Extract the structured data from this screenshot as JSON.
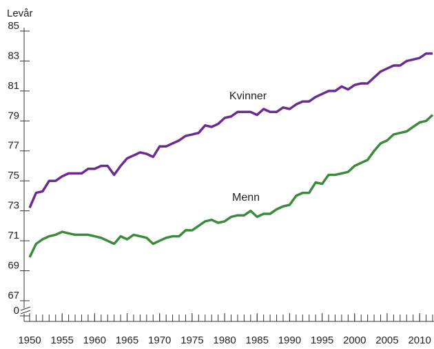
{
  "chart_data": {
    "type": "line",
    "y_label": "Levår",
    "x": [
      1950,
      1951,
      1952,
      1953,
      1954,
      1955,
      1956,
      1957,
      1958,
      1959,
      1960,
      1961,
      1962,
      1963,
      1964,
      1965,
      1966,
      1967,
      1968,
      1969,
      1970,
      1971,
      1972,
      1973,
      1974,
      1975,
      1976,
      1977,
      1978,
      1979,
      1980,
      1981,
      1982,
      1983,
      1984,
      1985,
      1986,
      1987,
      1988,
      1989,
      1990,
      1991,
      1992,
      1993,
      1994,
      1995,
      1996,
      1997,
      1998,
      1999,
      2000,
      2001,
      2002,
      2003,
      2004,
      2005,
      2006,
      2007,
      2008,
      2009,
      2010,
      2011,
      2012
    ],
    "series": [
      {
        "name": "Kvinner",
        "color": "#6a2c91",
        "values": [
          73.2,
          74.2,
          74.3,
          75.0,
          75.0,
          75.3,
          75.5,
          75.5,
          75.5,
          75.8,
          75.8,
          76.0,
          76.0,
          75.4,
          76.0,
          76.5,
          76.7,
          76.9,
          76.8,
          76.6,
          77.3,
          77.3,
          77.5,
          77.7,
          78.0,
          78.1,
          78.2,
          78.7,
          78.6,
          78.8,
          79.2,
          79.3,
          79.6,
          79.6,
          79.6,
          79.4,
          79.8,
          79.6,
          79.6,
          79.9,
          79.8,
          80.1,
          80.3,
          80.3,
          80.6,
          80.8,
          81.0,
          81.0,
          81.3,
          81.1,
          81.4,
          81.5,
          81.5,
          81.9,
          82.3,
          82.5,
          82.7,
          82.7,
          83.0,
          83.1,
          83.2,
          83.5,
          83.5
        ]
      },
      {
        "name": "Menn",
        "color": "#3b8a3e",
        "values": [
          69.9,
          70.8,
          71.1,
          71.3,
          71.4,
          71.6,
          71.5,
          71.4,
          71.4,
          71.4,
          71.3,
          71.2,
          71.0,
          70.8,
          71.3,
          71.1,
          71.4,
          71.3,
          71.2,
          70.8,
          71.0,
          71.2,
          71.3,
          71.3,
          71.7,
          71.7,
          72.0,
          72.3,
          72.4,
          72.2,
          72.3,
          72.6,
          72.7,
          72.7,
          73.0,
          72.6,
          72.8,
          72.8,
          73.1,
          73.3,
          73.4,
          74.0,
          74.2,
          74.2,
          74.9,
          74.8,
          75.4,
          75.4,
          75.5,
          75.6,
          76.0,
          76.2,
          76.4,
          77.0,
          77.5,
          77.7,
          78.1,
          78.2,
          78.3,
          78.6,
          78.9,
          79.0,
          79.4
        ]
      }
    ],
    "xlim": [
      1950,
      2012
    ],
    "xticks": [
      1950,
      1955,
      1960,
      1965,
      1970,
      1975,
      1980,
      1985,
      1990,
      1995,
      2000,
      2005,
      2010
    ],
    "ylim": [
      0,
      85
    ],
    "yticks": [
      0,
      67,
      69,
      71,
      73,
      75,
      77,
      79,
      81,
      83,
      85
    ],
    "axis_break": true
  }
}
